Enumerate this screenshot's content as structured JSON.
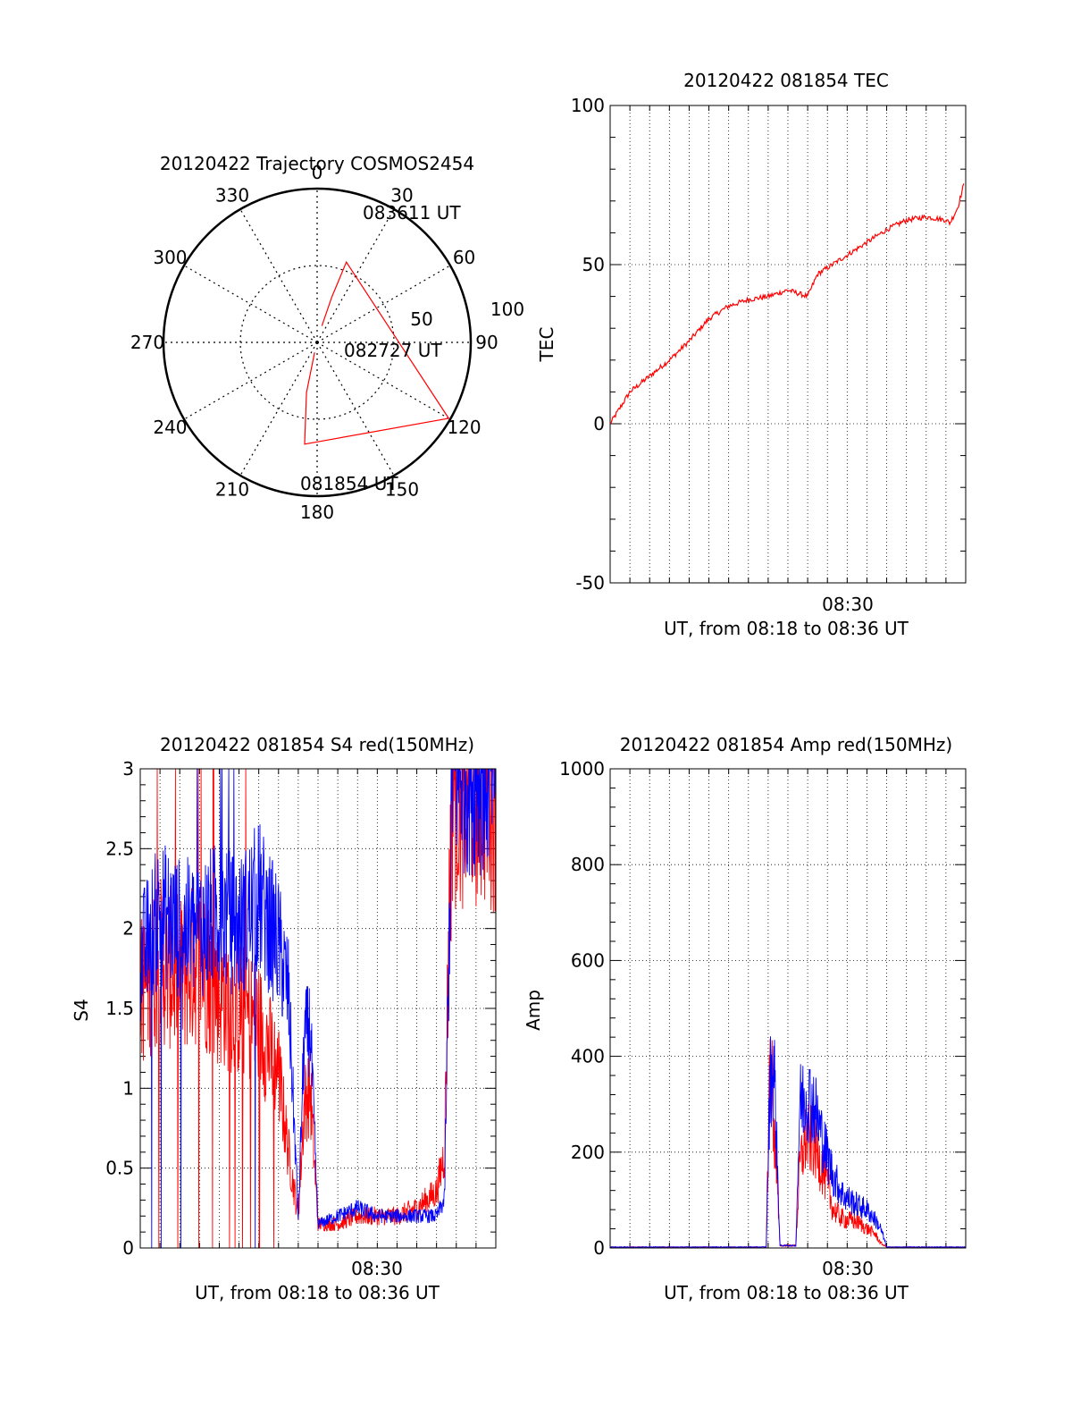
{
  "chart_data": [
    {
      "id": "polar",
      "type": "scatter",
      "title": "20120422 Trajectory COSMOS2454",
      "azimuth_labels": [
        "0",
        "30",
        "60",
        "90",
        "120",
        "150",
        "180",
        "210",
        "240",
        "270",
        "300",
        "330"
      ],
      "radius_labels": [
        "50",
        "100"
      ],
      "series": [
        {
          "color": "#ff0000",
          "points_az_el": [
            [
              194,
              84
            ],
            [
              192,
              60
            ],
            [
              187,
              30
            ],
            [
              120,
              1
            ],
            [
              20,
              40
            ],
            [
              18,
              62
            ],
            [
              16,
              80
            ]
          ]
        }
      ],
      "annotations": [
        "083611 UT",
        "082727 UT",
        "081854 UT"
      ]
    },
    {
      "id": "tec",
      "type": "line",
      "title": "20120422 081854 TEC",
      "xlabel": "UT, from 08:18 to 08:36 UT",
      "ylabel": "TEC",
      "ylim": [
        -50,
        100
      ],
      "yticks": [
        "-50",
        "0",
        "50",
        "100"
      ],
      "xtick_label": "08:30",
      "grid": true,
      "series": [
        {
          "color": "#ff0000",
          "x_min": [
            0,
            0.5,
            1,
            2,
            3,
            4,
            5,
            6,
            7,
            8,
            9,
            10,
            10.5,
            11,
            12,
            13,
            14,
            15,
            16,
            17,
            17.2,
            17.6,
            17.9
          ],
          "y": [
            0,
            5,
            10,
            15,
            20,
            26,
            33,
            37,
            39,
            40,
            42,
            40,
            47,
            49,
            53,
            57,
            61,
            64,
            65,
            64,
            63,
            68,
            75
          ]
        }
      ]
    },
    {
      "id": "s4",
      "type": "line",
      "title": "20120422 081854 S4 red(150MHz)",
      "xlabel": "UT, from 08:18 to 08:36 UT",
      "ylabel": "S4",
      "ylim": [
        0,
        3
      ],
      "yticks": [
        "0",
        "0.5",
        "1",
        "1.5",
        "2",
        "2.5",
        "3"
      ],
      "xtick_label": "08:30",
      "grid": true,
      "series": [
        {
          "color": "#ff0000",
          "x_min": [
            0,
            1,
            2,
            3,
            4,
            5,
            6,
            7,
            7.5,
            8,
            8.3,
            8.6,
            9,
            10,
            11,
            12,
            13,
            14,
            15,
            15.4,
            15.8,
            16.5,
            17.5,
            18
          ],
          "y": [
            1.6,
            1.8,
            1.7,
            1.8,
            1.6,
            1.5,
            1.4,
            1.1,
            0.6,
            0.2,
            0.9,
            1.0,
            0.15,
            0.15,
            0.2,
            0.2,
            0.2,
            0.25,
            0.35,
            0.6,
            3,
            3,
            3,
            3
          ]
        },
        {
          "color": "#0000ff",
          "x_min": [
            0,
            1,
            2,
            3,
            4,
            5,
            6,
            7,
            7.5,
            8,
            8.3,
            8.6,
            9,
            10,
            11,
            12,
            13,
            14,
            15,
            15.4,
            15.8,
            16.5,
            17.5,
            18
          ],
          "y": [
            1.8,
            2.1,
            2.0,
            2.0,
            2.1,
            2.0,
            2.2,
            1.9,
            1.6,
            0.2,
            1.3,
            1.4,
            0.15,
            0.2,
            0.25,
            0.2,
            0.2,
            0.2,
            0.2,
            0.3,
            3,
            3,
            3,
            3
          ]
        }
      ]
    },
    {
      "id": "amp",
      "type": "line",
      "title": "20120422 081854 Amp red(150MHz)",
      "xlabel": "UT, from 08:18 to 08:36 UT",
      "ylabel": "Amp",
      "ylim": [
        0,
        1000
      ],
      "yticks": [
        "0",
        "200",
        "400",
        "600",
        "800",
        "1000"
      ],
      "xtick_label": "08:30",
      "grid": true,
      "series": [
        {
          "color": "#ff0000",
          "x_min": [
            0,
            7.9,
            8.1,
            8.3,
            8.6,
            8.9,
            9.4,
            9.6,
            9.9,
            10.3,
            10.8,
            11.3,
            11.8,
            12.5,
            13,
            13.4,
            13.7,
            14,
            18
          ],
          "y": [
            2,
            2,
            420,
            250,
            5,
            5,
            5,
            170,
            230,
            220,
            160,
            80,
            60,
            55,
            40,
            30,
            10,
            2,
            2
          ]
        },
        {
          "color": "#0000ff",
          "x_min": [
            0,
            7.9,
            8.1,
            8.3,
            8.6,
            8.9,
            9.4,
            9.6,
            9.9,
            10.3,
            10.8,
            11.3,
            11.8,
            12.5,
            13,
            13.4,
            13.7,
            14,
            18
          ],
          "y": [
            2,
            2,
            350,
            380,
            5,
            5,
            5,
            300,
            320,
            300,
            220,
            150,
            110,
            90,
            80,
            60,
            40,
            2,
            2
          ]
        }
      ]
    }
  ]
}
